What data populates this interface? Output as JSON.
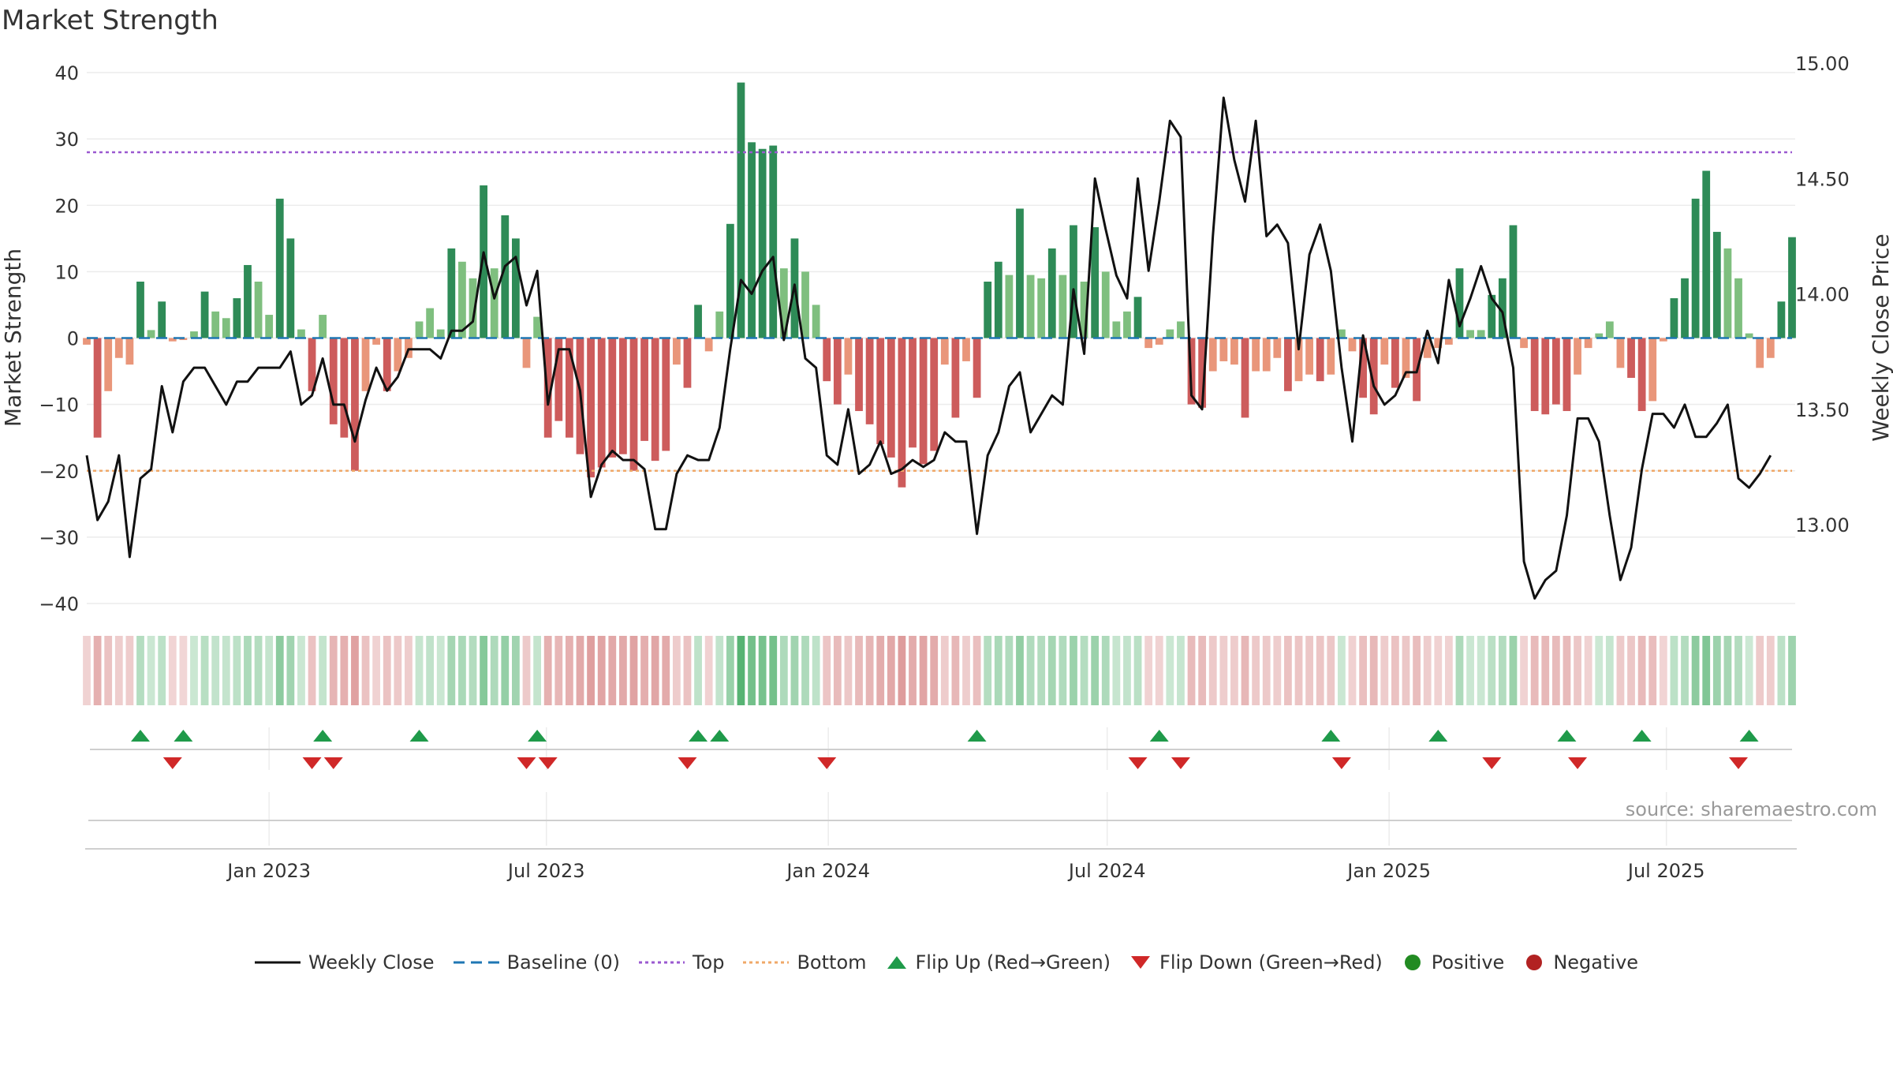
{
  "title": "Market Strength",
  "source": "source: sharemaestro.com",
  "colors": {
    "strong_green": "#2e8b57",
    "light_green": "#7fbf7f",
    "strong_red": "#cd5c5c",
    "light_red": "#e9967a",
    "close_line": "#111111",
    "baseline": "#1f77b4",
    "top_line": "#9b59d0",
    "bottom_line": "#f0a868",
    "flip_up": "#1f9a4a",
    "flip_down": "#d02828",
    "positive": "#228b22",
    "negative": "#b22222"
  },
  "legend": [
    {
      "label": "Weekly Close",
      "icon": "solid-line",
      "color": "#111111"
    },
    {
      "label": "Baseline (0)",
      "icon": "dashed-line",
      "color": "#1f77b4"
    },
    {
      "label": "Top",
      "icon": "dotted-line",
      "color": "#9b59d0"
    },
    {
      "label": "Bottom",
      "icon": "dotted-line",
      "color": "#f0a868"
    },
    {
      "label": "Flip Up (Red→Green)",
      "icon": "triangle-up",
      "color": "#1f9a4a"
    },
    {
      "label": "Flip Down (Green→Red)",
      "icon": "triangle-down",
      "color": "#d02828"
    },
    {
      "label": "Positive",
      "icon": "circle",
      "color": "#228b22"
    },
    {
      "label": "Negative",
      "icon": "circle",
      "color": "#b22222"
    }
  ],
  "chart_data": {
    "type": "bar",
    "title": "Market Strength",
    "ylabel": "Market Strength",
    "y2label": "Weekly Close Price",
    "ylim": [
      -40,
      40
    ],
    "y2lim": [
      12.6,
      15.0
    ],
    "yticks": [
      "40",
      "30",
      "20",
      "10",
      "0",
      "−10",
      "−20",
      "−30",
      "−40"
    ],
    "y2ticks": [
      "15.00",
      "14.50",
      "14.00",
      "13.50",
      "13.00"
    ],
    "x_start": "2022-09-04",
    "x_step_days": 7,
    "x_ticks": [
      {
        "label": "Jan 2023",
        "date": "2023-01-01"
      },
      {
        "label": "Jul 2023",
        "date": "2023-07-01"
      },
      {
        "label": "Jan 2024",
        "date": "2024-01-01"
      },
      {
        "label": "Jul 2024",
        "date": "2024-07-01"
      },
      {
        "label": "Jan 2025",
        "date": "2025-01-01"
      },
      {
        "label": "Jul 2025",
        "date": "2025-07-01"
      }
    ],
    "top": 28,
    "bottom": -20,
    "baseline": 0,
    "strength": [
      -1,
      -15,
      -8,
      -3,
      -4,
      8.5,
      1.2,
      5.5,
      -0.5,
      -0.3,
      1,
      7,
      4,
      3,
      6,
      11,
      8.5,
      3.5,
      21,
      15,
      1.3,
      -8,
      3.5,
      -13,
      -15,
      -20,
      -8,
      -1,
      -8,
      -5,
      -3,
      2.5,
      4.5,
      1.3,
      13.5,
      11.5,
      9,
      23,
      10.5,
      18.5,
      15,
      -4.5,
      3.2,
      -15,
      -12.5,
      -15,
      -17.5,
      -21,
      -19.5,
      -18,
      -17.5,
      -20,
      -15.5,
      -18.5,
      -17,
      -4,
      -7.5,
      5,
      -2,
      4,
      17.2,
      38.5,
      29.5,
      28.5,
      29,
      10.5,
      15,
      10,
      5,
      -6.5,
      -10,
      -5.5,
      -11,
      -13,
      -16,
      -18,
      -22.5,
      -16.5,
      -19,
      -17,
      -4,
      -12,
      -3.5,
      -9,
      8.5,
      11.5,
      9.5,
      19.5,
      9.5,
      9,
      13.5,
      9.5,
      17,
      8.5,
      16.7,
      10,
      2.5,
      4,
      6.2,
      -1.5,
      -1,
      1.3,
      2.5,
      -10,
      -10.5,
      -5,
      -3.5,
      -4,
      -12,
      -5,
      -5,
      -3,
      -8,
      -6.5,
      -5.5,
      -6.5,
      -5.5,
      1.3,
      -2,
      -9,
      -11.5,
      -4,
      -7.5,
      -6,
      -9.5,
      -3,
      -1.5,
      -1,
      10.5,
      1.2,
      1.2,
      6.5,
      9,
      17,
      -1.5,
      -11,
      -11.5,
      -10,
      -11,
      -5.5,
      -1.5,
      0.7,
      2.5,
      -4.5,
      -6,
      -11,
      -9.5,
      -0.5,
      6,
      9,
      21,
      25.2,
      16,
      13.5,
      9,
      0.7,
      -4.5,
      -3,
      5.5,
      15.2
    ],
    "close": [
      13.3,
      13.02,
      13.1,
      13.3,
      12.86,
      13.2,
      13.24,
      13.6,
      13.4,
      13.62,
      13.68,
      13.68,
      13.6,
      13.52,
      13.62,
      13.62,
      13.68,
      13.68,
      13.68,
      13.75,
      13.52,
      13.56,
      13.72,
      13.52,
      13.52,
      13.36,
      13.54,
      13.68,
      13.58,
      13.64,
      13.76,
      13.76,
      13.76,
      13.72,
      13.84,
      13.84,
      13.88,
      14.18,
      13.98,
      14.12,
      14.16,
      13.95,
      14.1,
      13.52,
      13.76,
      13.76,
      13.58,
      13.12,
      13.26,
      13.32,
      13.28,
      13.28,
      13.24,
      12.98,
      12.98,
      13.22,
      13.3,
      13.28,
      13.28,
      13.42,
      13.76,
      14.06,
      14,
      14.1,
      14.16,
      13.8,
      14.04,
      13.72,
      13.68,
      13.3,
      13.26,
      13.5,
      13.22,
      13.26,
      13.36,
      13.22,
      13.24,
      13.28,
      13.25,
      13.28,
      13.4,
      13.36,
      13.36,
      12.96,
      13.3,
      13.4,
      13.6,
      13.66,
      13.4,
      13.48,
      13.56,
      13.52,
      14.02,
      13.74,
      14.5,
      14.28,
      14.08,
      13.98,
      14.5,
      14.1,
      14.4,
      14.75,
      14.68,
      13.56,
      13.5,
      14.25,
      14.85,
      14.58,
      14.4,
      14.75,
      14.25,
      14.3,
      14.22,
      13.76,
      14.17,
      14.3,
      14.1,
      13.68,
      13.36,
      13.82,
      13.6,
      13.52,
      13.56,
      13.66,
      13.66,
      13.84,
      13.7,
      14.06,
      13.86,
      13.98,
      14.12,
      13.98,
      13.92,
      13.68,
      12.84,
      12.68,
      12.76,
      12.8,
      13.04,
      13.46,
      13.46,
      13.36,
      13.04,
      12.76,
      12.9,
      13.24,
      13.48,
      13.48,
      13.42,
      13.52,
      13.38,
      13.38,
      13.44,
      13.52,
      13.2,
      13.16,
      13.22,
      13.3
    ],
    "flips": [
      {
        "dir": "up",
        "i": 5
      },
      {
        "dir": "down",
        "i": 8
      },
      {
        "dir": "up",
        "i": 9
      },
      {
        "dir": "down",
        "i": 21
      },
      {
        "dir": "up",
        "i": 22
      },
      {
        "dir": "down",
        "i": 23
      },
      {
        "dir": "up",
        "i": 31
      },
      {
        "dir": "down",
        "i": 41
      },
      {
        "dir": "up",
        "i": 42
      },
      {
        "dir": "down",
        "i": 43
      },
      {
        "dir": "down",
        "i": 56
      },
      {
        "dir": "up",
        "i": 57
      },
      {
        "dir": "up",
        "i": 59
      },
      {
        "dir": "down",
        "i": 69
      },
      {
        "dir": "up",
        "i": 83
      },
      {
        "dir": "down",
        "i": 98
      },
      {
        "dir": "up",
        "i": 100
      },
      {
        "dir": "down",
        "i": 102
      },
      {
        "dir": "up",
        "i": 116
      },
      {
        "dir": "down",
        "i": 117
      },
      {
        "dir": "up",
        "i": 126
      },
      {
        "dir": "down",
        "i": 131
      },
      {
        "dir": "up",
        "i": 138
      },
      {
        "dir": "down",
        "i": 139
      },
      {
        "dir": "up",
        "i": 145
      },
      {
        "dir": "down",
        "i": 154
      },
      {
        "dir": "up",
        "i": 155
      }
    ]
  }
}
